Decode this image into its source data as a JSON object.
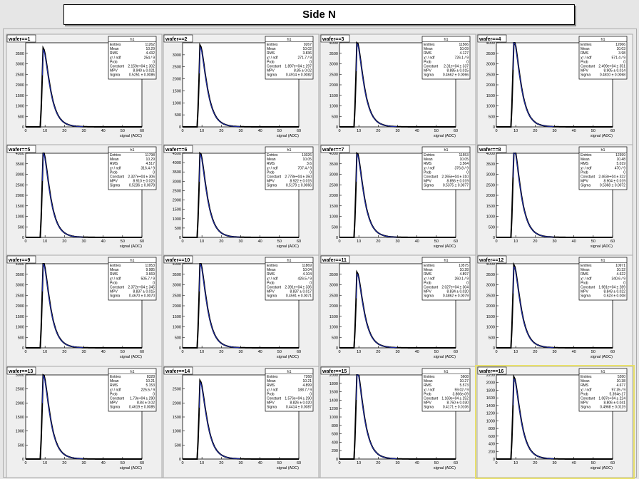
{
  "title": "Side N",
  "chart_data": {
    "type": "histogram-grid",
    "title": "Side N",
    "xlabel": "signal (ADC)",
    "x_ticks": [
      0,
      10,
      20,
      30,
      40,
      50,
      60
    ],
    "xlim": [
      0,
      60
    ],
    "histogram_name": "h1",
    "stat_labels": [
      "Entries",
      "Mean",
      "RMS",
      "χ² / ndf",
      "Prob",
      "Constant",
      "MPV",
      "Sigma"
    ],
    "panels": [
      {
        "label": "wafer==1",
        "ylim": [
          0,
          4000
        ],
        "y_ticks": [
          0,
          500,
          1000,
          1500,
          2000,
          2500,
          3000,
          3500
        ],
        "peak": 3750,
        "stats": [
          "11262",
          "10.29",
          "4.432",
          "254 / 9",
          "0",
          "2.159e+04 ± 302",
          "8.940 ± 0.021",
          "0.5251 ± 0.0086"
        ]
      },
      {
        "label": "wafer==2",
        "ylim": [
          0,
          3500
        ],
        "y_ticks": [
          0,
          500,
          1000,
          1500,
          2000,
          2500,
          3000
        ],
        "peak": 3400,
        "stats": [
          "9267",
          "10.02",
          "3.836",
          "271.7 / 9",
          "0",
          "1.897e+04 ± 297",
          "8.85 ± 0.02",
          "0.4914 ± 0.0082"
        ]
      },
      {
        "label": "wafer==3",
        "ylim": [
          0,
          4000
        ],
        "y_ticks": [
          0,
          500,
          1000,
          1500,
          2000,
          2500,
          3000,
          3500,
          4000
        ],
        "peak": 4050,
        "stats": [
          "11566",
          "10.09",
          "4.127",
          "726.1 / 9",
          "0",
          "2.31e+04 ± 337",
          "8.885 ± 0.015",
          "0.4662 ± 0.0066"
        ]
      },
      {
        "label": "wafer==4",
        "ylim": [
          0,
          4000
        ],
        "y_ticks": [
          0,
          500,
          1000,
          1500,
          2000,
          2500,
          3000,
          3500,
          4000
        ],
        "peak": 4150,
        "stats": [
          "12066",
          "10.03",
          "3.98",
          "571.4 / 9",
          "0",
          "2.499e+04 ± 351",
          "8.905 ± 0.014",
          "0.4810 ± 0.0068"
        ]
      },
      {
        "label": "wafer==5",
        "ylim": [
          0,
          4000
        ],
        "y_ticks": [
          0,
          500,
          1000,
          1500,
          2000,
          2500,
          3000,
          3500,
          4000
        ],
        "peak": 4100,
        "stats": [
          "11798",
          "10.29",
          "4.517",
          "316.4 / 9",
          "0",
          "2.327e+04 ± 306",
          "8.910 ± 0.023",
          "0.5236 ± 0.0078"
        ]
      },
      {
        "label": "wafer==6",
        "ylim": [
          0,
          4500
        ],
        "y_ticks": [
          0,
          500,
          1000,
          1500,
          2000,
          2500,
          3000,
          3500,
          4000,
          4500
        ],
        "peak": 4550,
        "stats": [
          "13026",
          "10.05",
          "3.6",
          "707.4 / 9",
          "0",
          "2.778e+04 ± 350",
          "8.922 ± 0.015",
          "0.5179 ± 0.0066"
        ]
      },
      {
        "label": "wafer==7",
        "ylim": [
          0,
          4000
        ],
        "y_ticks": [
          0,
          500,
          1000,
          1500,
          2000,
          2500,
          3000,
          3500,
          4000
        ],
        "peak": 4050,
        "stats": [
          "11553",
          "10.05",
          "3.564",
          "376.8 / 9",
          "0",
          "2.265e+04 ± 310",
          "8.856 ± 0.019",
          "0.5375 ± 0.0077"
        ]
      },
      {
        "label": "wafer==8",
        "ylim": [
          0,
          4000
        ],
        "y_ticks": [
          0,
          500,
          1000,
          1500,
          2000,
          2500,
          3000,
          3500,
          4000
        ],
        "peak": 4350,
        "stats": [
          "12399",
          "10.48",
          "5.019",
          "470 / 9",
          "0",
          "2.463e+04 ± 322",
          "8.904 ± 0.019",
          "0.5368 ± 0.0072"
        ]
      },
      {
        "label": "wafer==9",
        "ylim": [
          0,
          4000
        ],
        "y_ticks": [
          0,
          500,
          1000,
          1500,
          2000,
          2500,
          3000,
          3500,
          4000
        ],
        "peak": 4100,
        "stats": [
          "11953",
          "9.985",
          "3.669",
          "505.7 / 9",
          "0",
          "2.372e+04 ± 345",
          "8.837 ± 0.015",
          "0.4670 ± 0.0070"
        ]
      },
      {
        "label": "wafer==10",
        "ylim": [
          0,
          4000
        ],
        "y_ticks": [
          0,
          500,
          1000,
          1500,
          2000,
          2500,
          3000,
          3500,
          4000
        ],
        "peak": 4100,
        "stats": [
          "11869",
          "10.04",
          "4.104",
          "426.5 / 9",
          "0",
          "2.391e+04 ± 336",
          "8.837 ± 0.017",
          "0.4591 ± 0.0071"
        ]
      },
      {
        "label": "wafer==11",
        "ylim": [
          0,
          4000
        ],
        "y_ticks": [
          0,
          500,
          1000,
          1500,
          2000,
          2500,
          3000,
          3500
        ],
        "peak": 3600,
        "stats": [
          "10575",
          "10.28",
          "4.897",
          "260.1 / 9",
          "0",
          "2.027e+04 ± 304",
          "8.834 ± 0.020",
          "0.4862 ± 0.0079"
        ]
      },
      {
        "label": "wafer==12",
        "ylim": [
          0,
          4000
        ],
        "y_ticks": [
          0,
          500,
          1000,
          1500,
          2000,
          2500,
          3000,
          3500,
          4000
        ],
        "peak": 3950,
        "stats": [
          "10971",
          "10.32",
          "4.622",
          "340.6 / 9",
          "0",
          "1.981e+04 ± 289",
          "8.843 ± 0.022",
          "0.523 ± 0.008"
        ]
      },
      {
        "label": "wafer==13",
        "ylim": [
          0,
          3000
        ],
        "y_ticks": [
          0,
          500,
          1000,
          1500,
          2000,
          2500,
          3000
        ],
        "peak": 3050,
        "stats": [
          "8328",
          "10.21",
          "5.153",
          "225.5 / 9",
          "0",
          "1.73e+04 ± 290",
          "8.84 ± 0.02",
          "0.4619 ± 0.0085"
        ]
      },
      {
        "label": "wafer==14",
        "ylim": [
          0,
          3000
        ],
        "y_ticks": [
          0,
          500,
          1000,
          1500,
          2000,
          2500
        ],
        "peak": 2800,
        "stats": [
          "7268",
          "10.21",
          "4.899",
          "188.7 / 9",
          "0",
          "1.576e+04 ± 290",
          "8.826 ± 0.020",
          "0.4414 ± 0.0087"
        ]
      },
      {
        "label": "wafer==15",
        "ylim": [
          0,
          2000
        ],
        "y_ticks": [
          0,
          200,
          400,
          600,
          800,
          1000,
          1200,
          1400,
          1600,
          1800,
          2000
        ],
        "peak": 2150,
        "stats": [
          "5608",
          "10.27",
          "5.573",
          "59.02 / 9",
          "3.866e-09",
          "1.169e+04 ± 252",
          "8.750 ± 0.030",
          "0.4171 ± 0.0106"
        ]
      },
      {
        "label": "wafer==16",
        "ylim": [
          0,
          2200
        ],
        "y_ticks": [
          0,
          200,
          400,
          600,
          800,
          1000,
          1200,
          1400,
          1600,
          1800,
          2000,
          2200
        ],
        "peak": 2150,
        "stats": [
          "5260",
          "10.38",
          "4.677",
          "97.35 / 9",
          "5.394e-17",
          "1.087e+04 ± 224",
          "8.806 ± 0.041",
          "0.4968 ± 0.0119"
        ]
      }
    ]
  }
}
